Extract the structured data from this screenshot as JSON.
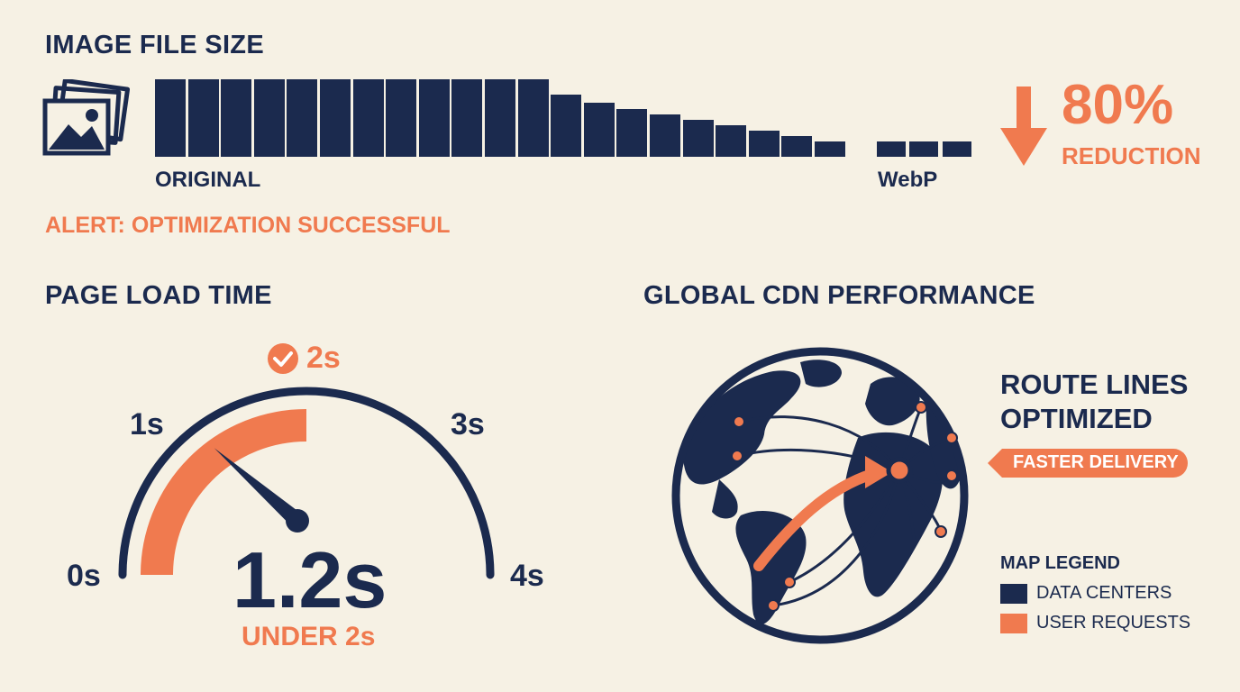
{
  "file_size": {
    "title": "IMAGE FILE SIZE",
    "original_label": "ORIGINAL",
    "webp_label": "WebP",
    "reduction_pct": "80%",
    "reduction_label": "REDUCTION",
    "alert": "ALERT: OPTIMIZATION SUCCESSFUL",
    "icon": "image-stack-icon",
    "bar_levels": [
      1,
      1,
      1,
      1,
      1,
      1,
      1,
      1,
      1,
      1,
      1,
      1,
      0.8,
      0.7,
      0.62,
      0.55,
      0.48,
      0.41,
      0.34,
      0.27,
      0.2,
      0.2,
      0.2,
      0.2
    ]
  },
  "load_time": {
    "title": "PAGE LOAD TIME",
    "ticks": [
      "0s",
      "1s",
      "3s",
      "4s"
    ],
    "target": "2s",
    "value": "1.2s",
    "subtitle": "UNDER 2s",
    "gauge_min": 0,
    "gauge_max": 4,
    "gauge_reading": 1.2,
    "target_value": 2,
    "icon": "check-circle-icon"
  },
  "cdn": {
    "title": "GLOBAL CDN PERFORMANCE",
    "route_title_line1": "ROUTE LINES",
    "route_title_line2": "OPTIMIZED",
    "badge": "FASTER DELIVERY",
    "legend_title": "MAP LEGEND",
    "legend": [
      {
        "label": "DATA CENTERS",
        "color": "#1b2a4e"
      },
      {
        "label": "USER REQUESTS",
        "color": "#f07a4f"
      }
    ],
    "icon": "globe-icon"
  },
  "colors": {
    "navy": "#1b2a4e",
    "orange": "#f07a4f",
    "background": "#f6f1e4"
  }
}
